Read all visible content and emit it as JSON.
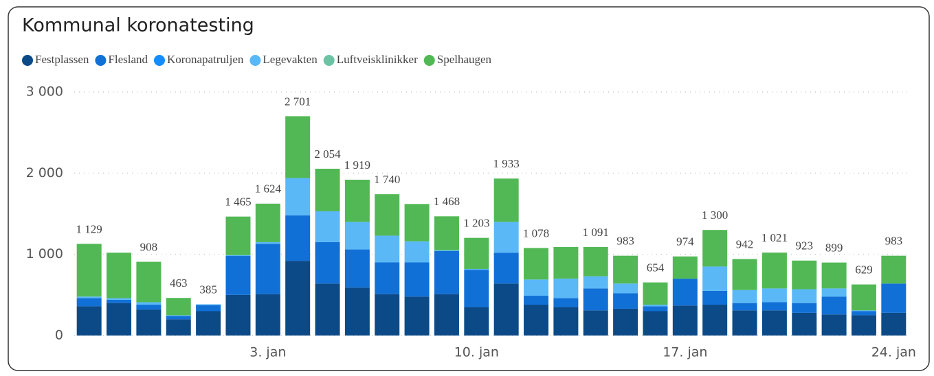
{
  "chart_data": {
    "type": "stacked_bar",
    "title": "Kommunal koronatesting",
    "categories": [
      null,
      null,
      null,
      null,
      null,
      null,
      "3. jan",
      null,
      null,
      null,
      null,
      null,
      null,
      "10. jan",
      null,
      null,
      null,
      null,
      null,
      null,
      "17. jan",
      null,
      null,
      null,
      null,
      null,
      null,
      "24. jan"
    ],
    "series": [
      {
        "name": "Festplassen",
        "color": "#0b4a87",
        "values": [
          360,
          400,
          320,
          200,
          300,
          500,
          510,
          920,
          640,
          590,
          510,
          480,
          510,
          350,
          640,
          380,
          350,
          310,
          330,
          300,
          370,
          380,
          310,
          310,
          280,
          260,
          250,
          280
        ]
      },
      {
        "name": "Flesland",
        "color": "#1170d6",
        "values": [
          100,
          40,
          60,
          40,
          75,
          480,
          620,
          560,
          510,
          470,
          390,
          420,
          530,
          460,
          380,
          110,
          110,
          270,
          190,
          60,
          330,
          170,
          90,
          100,
          120,
          220,
          50,
          360
        ]
      },
      {
        "name": "Koronapatruljen",
        "color": "#118dff",
        "values": [
          0,
          0,
          0,
          0,
          0,
          0,
          0,
          0,
          0,
          0,
          0,
          0,
          0,
          0,
          0,
          0,
          0,
          0,
          0,
          0,
          0,
          0,
          0,
          0,
          0,
          0,
          0,
          0
        ]
      },
      {
        "name": "Legevakten",
        "color": "#5ab8f7",
        "values": [
          20,
          20,
          30,
          10,
          10,
          10,
          20,
          460,
          380,
          340,
          330,
          260,
          10,
          10,
          380,
          200,
          240,
          150,
          120,
          20,
          0,
          300,
          160,
          170,
          170,
          100,
          10,
          0
        ]
      },
      {
        "name": "Luftveisklinikker",
        "color": "#6cc3a4",
        "values": [
          0,
          0,
          0,
          0,
          0,
          0,
          0,
          0,
          0,
          0,
          0,
          0,
          0,
          0,
          0,
          0,
          0,
          0,
          0,
          0,
          0,
          0,
          0,
          0,
          0,
          0,
          0,
          0
        ]
      },
      {
        "name": "Spelhaugen",
        "color": "#52b855",
        "values": [
          649,
          560,
          498,
          213,
          0,
          475,
          474,
          761,
          524,
          519,
          510,
          460,
          418,
          383,
          533,
          388,
          390,
          361,
          343,
          274,
          274,
          450,
          382,
          441,
          353,
          319,
          319,
          343
        ]
      }
    ],
    "total_labels": [
      "1 129",
      null,
      "908",
      "463",
      "385",
      "1 465",
      "1 624",
      "2 701",
      "2 054",
      "1 919",
      "1 740",
      null,
      "1 468",
      "1 203",
      "1 933",
      "1 078",
      null,
      "1 091",
      "983",
      "654",
      "974",
      "1 300",
      "942",
      "1 021",
      "923",
      "899",
      "629",
      "983"
    ],
    "ylim": [
      0,
      3000
    ],
    "yticks": [
      0,
      {
        "value": 1000,
        "label": "1 000"
      },
      {
        "value": 2000,
        "label": "2 000"
      },
      {
        "value": 3000,
        "label": "3 000"
      }
    ],
    "grid": true
  }
}
